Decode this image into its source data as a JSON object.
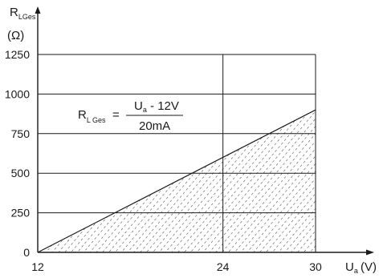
{
  "chart_data": {
    "type": "area",
    "x": [
      12,
      30
    ],
    "values": [
      0,
      900
    ],
    "xlim": [
      12,
      30
    ],
    "ylim": [
      0,
      1250
    ],
    "x_ticks": [
      "12",
      "24",
      "30"
    ],
    "y_ticks": [
      "0",
      "250",
      "500",
      "750",
      "1000",
      "1250"
    ],
    "x_tick_values": [
      12,
      24,
      30
    ],
    "y_tick_values": [
      0,
      250,
      500,
      750,
      1000,
      1250
    ],
    "ylabel": {
      "main": "R",
      "sub": "LGes",
      "unit": "(Ω)"
    },
    "xlabel": {
      "main": "U",
      "sub": "a",
      "unit": "(V)"
    },
    "annotation": {
      "lhs_main": "R",
      "lhs_sub": "L Ges",
      "equals": "=",
      "num_main": "U",
      "num_sub": "a",
      "num_rest": " - 12V",
      "denominator": "20mA"
    },
    "grid": true,
    "fill": "hatched"
  },
  "colors": {
    "line": "#1a1a1a",
    "background": "#ffffff"
  }
}
